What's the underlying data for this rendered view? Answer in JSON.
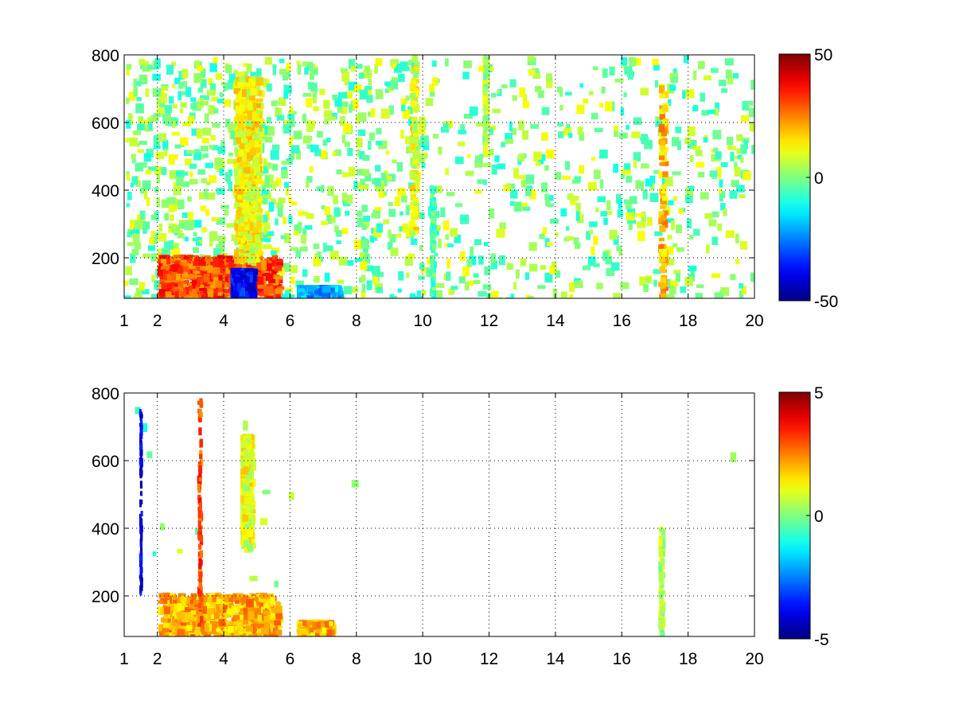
{
  "chart_data": [
    {
      "type": "heatmap",
      "title": "",
      "xlabel": "",
      "ylabel": "",
      "xlim": [
        1,
        20
      ],
      "ylim": [
        80,
        800
      ],
      "xticks": [
        1,
        2,
        4,
        6,
        8,
        10,
        12,
        14,
        16,
        18,
        20
      ],
      "yticks": [
        200,
        400,
        600,
        800
      ],
      "grid": true,
      "colormap": "jet",
      "colorbar": {
        "clim": [
          -50,
          50
        ],
        "ticks": [
          50,
          0,
          -50
        ]
      },
      "features": [
        {
          "label": "strong band",
          "x": [
            2.0,
            5.6
          ],
          "y": [
            80,
            210
          ],
          "value": 30
        },
        {
          "label": "negative pocket",
          "x": [
            4.2,
            4.8
          ],
          "y": [
            90,
            170
          ],
          "value": -38
        },
        {
          "label": "low-frequency ridge",
          "x": [
            6.2,
            7.4
          ],
          "y": [
            80,
            120
          ],
          "value": -20
        },
        {
          "label": "rising streak",
          "x": [
            4.3,
            5.0
          ],
          "y": [
            200,
            740
          ],
          "value": 12
        },
        {
          "label": "vertical line",
          "x": [
            9.6,
            9.75
          ],
          "y": [
            280,
            800
          ],
          "value": 10
        },
        {
          "label": "vertical line",
          "x": [
            17.1,
            17.25
          ],
          "y": [
            80,
            720
          ],
          "value": 18
        },
        {
          "label": "vertical line",
          "x": [
            11.8,
            11.9
          ],
          "y": [
            520,
            800
          ],
          "value": 6
        },
        {
          "label": "vertical line",
          "x": [
            10.2,
            10.3
          ],
          "y": [
            100,
            420
          ],
          "value": -5
        }
      ]
    },
    {
      "type": "heatmap",
      "title": "",
      "xlabel": "",
      "ylabel": "",
      "xlim": [
        1,
        20
      ],
      "ylim": [
        80,
        800
      ],
      "xticks": [
        1,
        2,
        4,
        6,
        8,
        10,
        12,
        14,
        16,
        18,
        20
      ],
      "yticks": [
        200,
        400,
        600,
        800
      ],
      "grid": true,
      "colormap": "jet",
      "colorbar": {
        "clim": [
          -5,
          5
        ],
        "ticks": [
          5,
          0,
          -5
        ]
      },
      "features": [
        {
          "label": "dense band",
          "x": [
            2.0,
            5.6
          ],
          "y": [
            80,
            210
          ],
          "value": 2
        },
        {
          "label": "low-frequency ridge",
          "x": [
            6.2,
            7.2
          ],
          "y": [
            90,
            130
          ],
          "value": 2
        },
        {
          "label": "vertical line",
          "x": [
            1.45,
            1.5
          ],
          "y": [
            220,
            770
          ],
          "value": -4
        },
        {
          "label": "vertical line",
          "x": [
            3.2,
            3.28
          ],
          "y": [
            120,
            790
          ],
          "value": 3
        },
        {
          "label": "rising streak",
          "x": [
            4.5,
            4.75
          ],
          "y": [
            350,
            680
          ],
          "value": 1
        },
        {
          "label": "vertical line",
          "x": [
            17.1,
            17.2
          ],
          "y": [
            80,
            410
          ],
          "value": 0.5
        }
      ]
    }
  ]
}
